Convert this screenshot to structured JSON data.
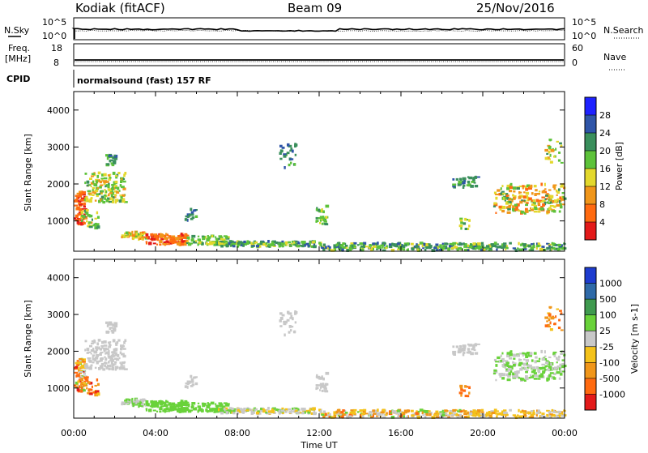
{
  "header": {
    "station": "Kodiak (fitACF)",
    "beam": "Beam 09",
    "date": "25/Nov/2016"
  },
  "panels": {
    "nsky": {
      "label": "N.Sky",
      "tick_top": "10^5",
      "tick_bottom": "10^0"
    },
    "nsearch": {
      "label": "N.Search",
      "tick_top": "10^5",
      "tick_bottom": "10^0"
    },
    "freq": {
      "label_line1": "Freq.",
      "label_line2": "[MHz]",
      "tick_top": "18",
      "tick_bottom": "8"
    },
    "nave": {
      "label": "Nave",
      "tick_top": "60",
      "tick_bottom": "0"
    },
    "cpid": {
      "label": "CPID",
      "value": "normalsound (fast) 157 RF"
    }
  },
  "chart_data": [
    {
      "type": "heatmap",
      "name": "power",
      "ylabel": "Slant Range [km]",
      "xlabel": "Time UT",
      "xlim": [
        0,
        24
      ],
      "ylim": [
        180,
        4500
      ],
      "y_ticks": [
        "1000",
        "2000",
        "3000",
        "4000"
      ],
      "colorbar": {
        "label": "Power [dB]",
        "ticks": [
          "4",
          "8",
          "12",
          "16",
          "20",
          "24",
          "28"
        ],
        "colors": [
          "#1e22ff",
          "#2f55a8",
          "#3a8f5c",
          "#5dc23a",
          "#e3d82c",
          "#f0961a",
          "#ff6a10",
          "#e31a1a"
        ]
      }
    },
    {
      "type": "heatmap",
      "name": "velocity",
      "ylabel": "Slant Range [km]",
      "xlabel": "Time UT",
      "xlim": [
        0,
        24
      ],
      "ylim": [
        180,
        4500
      ],
      "y_ticks": [
        "1000",
        "2000",
        "3000",
        "4000"
      ],
      "colorbar": {
        "label": "Velocity [m s-1]",
        "ticks": [
          "1000",
          "500",
          "100",
          "25",
          "-25",
          "-100",
          "-500",
          "-1000"
        ],
        "colors": [
          "#1e3ccf",
          "#2f6aa8",
          "#3f9a4f",
          "#69d23a",
          "#c8c8c8",
          "#f4c21a",
          "#f0961a",
          "#ff6a10",
          "#e31a1a"
        ]
      }
    }
  ],
  "time_axis": {
    "label": "Time UT",
    "ticks": [
      "00:00",
      "04:00",
      "08:00",
      "12:00",
      "16:00",
      "20:00",
      "00:00"
    ]
  }
}
